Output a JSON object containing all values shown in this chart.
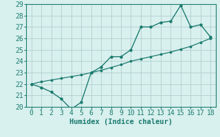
{
  "xlabel": "Humidex (Indice chaleur)",
  "x": [
    0,
    1,
    2,
    3,
    4,
    5,
    6,
    7,
    8,
    9,
    10,
    11,
    12,
    13,
    14,
    15,
    16,
    17,
    18
  ],
  "y_line": [
    22.0,
    21.7,
    21.3,
    20.7,
    19.8,
    20.4,
    23.0,
    23.5,
    24.4,
    24.4,
    25.0,
    27.0,
    27.0,
    27.4,
    27.5,
    28.9,
    27.0,
    27.2,
    26.1
  ],
  "y_trend": [
    22.0,
    22.2,
    22.35,
    22.5,
    22.65,
    22.8,
    23.0,
    23.2,
    23.45,
    23.7,
    24.0,
    24.2,
    24.4,
    24.6,
    24.8,
    25.05,
    25.3,
    25.65,
    26.0
  ],
  "line_color": "#1a7a6e",
  "bg_color": "#d8f0ee",
  "grid_color": "#b0cece",
  "ylim": [
    20,
    29
  ],
  "yticks": [
    20,
    21,
    22,
    23,
    24,
    25,
    26,
    27,
    28,
    29
  ],
  "xticks": [
    0,
    1,
    2,
    3,
    4,
    5,
    6,
    7,
    8,
    9,
    10,
    11,
    12,
    13,
    14,
    15,
    16,
    17,
    18
  ],
  "tick_fontsize": 7,
  "xlabel_fontsize": 7.5
}
